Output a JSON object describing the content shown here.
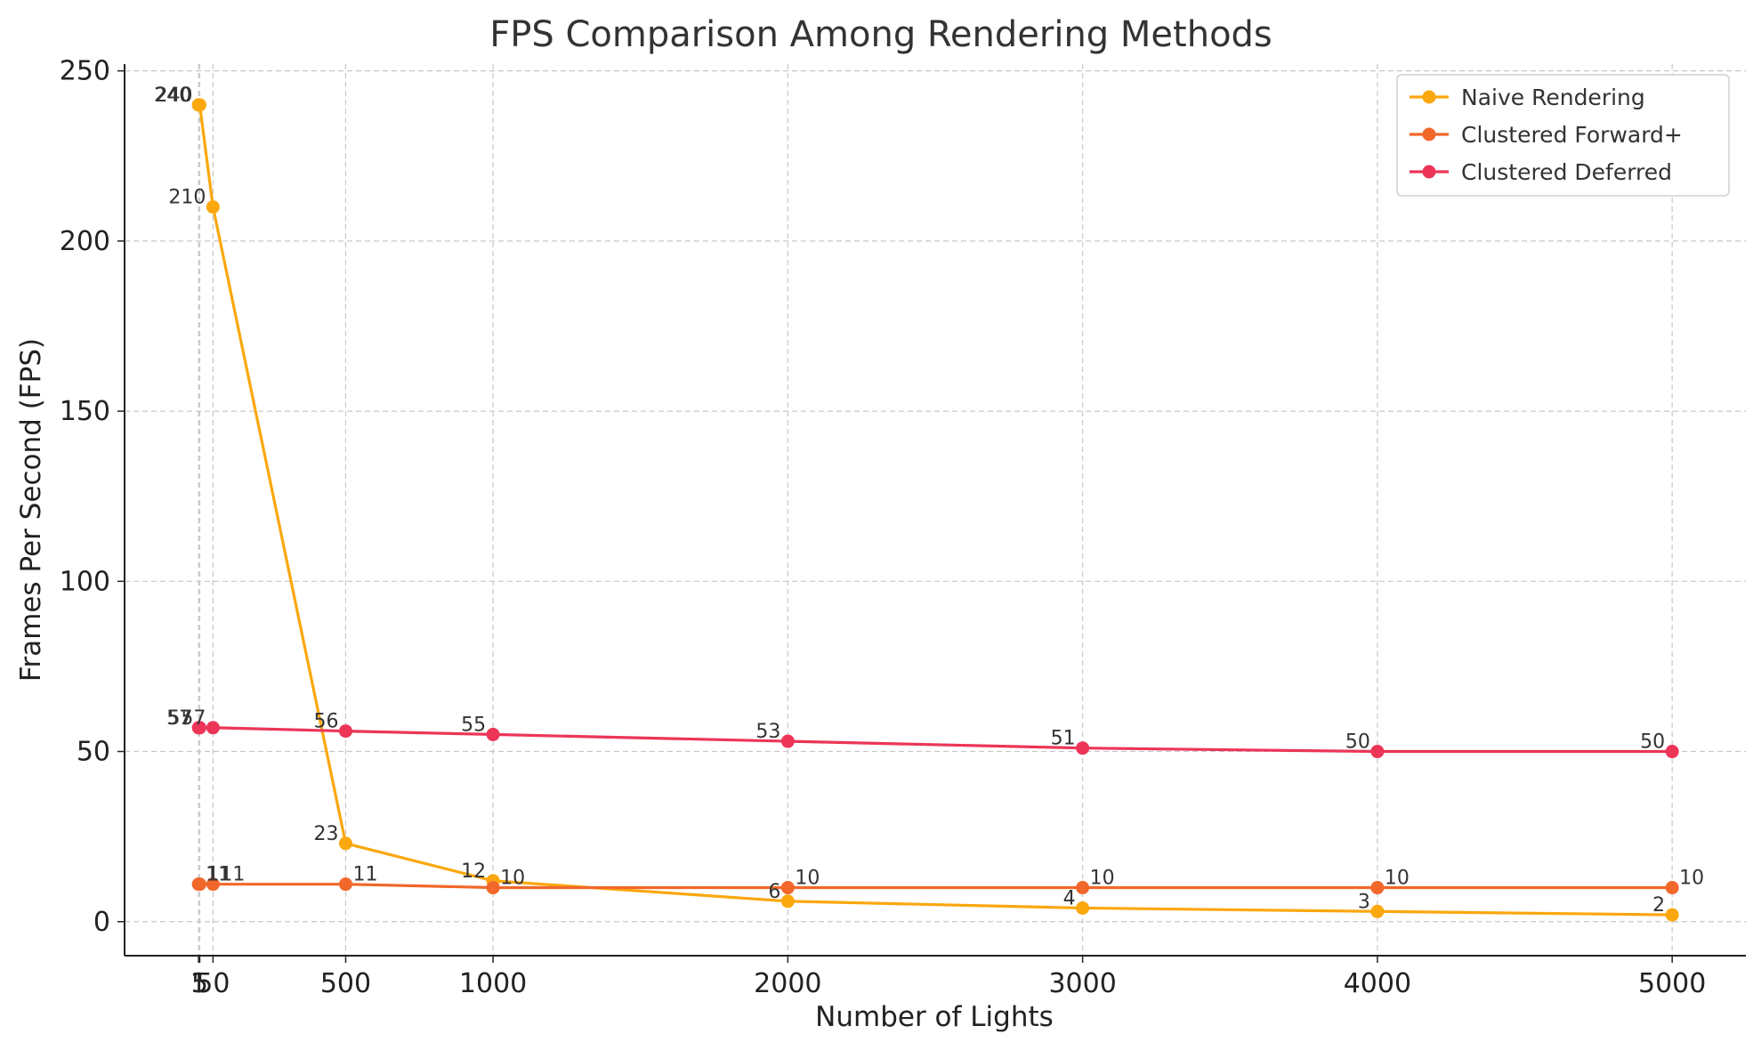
{
  "chart_data": {
    "type": "line",
    "title": "FPS Comparison Among Rendering Methods",
    "xlabel": "Number of Lights",
    "ylabel": "Frames Per Second (FPS)",
    "x": [
      1,
      5,
      50,
      500,
      1000,
      2000,
      3000,
      4000,
      5000
    ],
    "xticks": [
      1,
      5,
      50,
      500,
      1000,
      2000,
      3000,
      4000,
      5000
    ],
    "yticks": [
      0,
      50,
      100,
      150,
      200,
      250
    ],
    "xlim": [
      -250,
      5250
    ],
    "ylim": [
      -10,
      252
    ],
    "grid": true,
    "legend_position": "top-right",
    "series": [
      {
        "name": "Naive Rendering",
        "color": "#FBA70E",
        "values": [
          240,
          240,
          210,
          23,
          12,
          6,
          4,
          3,
          2
        ],
        "label_placement": "left"
      },
      {
        "name": "Clustered Forward+",
        "color": "#F2672A",
        "values": [
          11,
          11,
          11,
          11,
          10,
          10,
          10,
          10,
          10
        ],
        "label_placement": "right"
      },
      {
        "name": "Clustered Deferred",
        "color": "#EC3557",
        "values": [
          57,
          57,
          57,
          56,
          55,
          53,
          51,
          50,
          50
        ],
        "label_placement": "left"
      }
    ]
  }
}
